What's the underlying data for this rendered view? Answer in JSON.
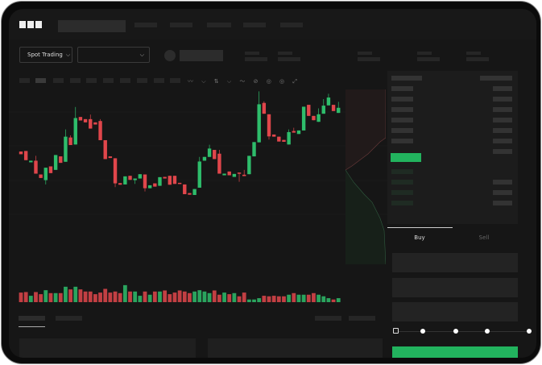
{
  "header": {
    "logo": "OKX"
  },
  "toolbar": {
    "market_select": "Spot Trading",
    "chevron": "chevron-down-icon"
  },
  "trade_panel": {
    "tabs": [
      {
        "label": "Buy",
        "active": true
      },
      {
        "label": "Sell",
        "active": false
      }
    ],
    "slider_level": 0,
    "buy_color": "#22b35e"
  },
  "colors": {
    "up": "#2ebd6b",
    "down": "#e0464b",
    "background": "#161616"
  },
  "chart_data": {
    "type": "candlestick",
    "up_color": "#2ebd6b",
    "down_color": "#e0464b",
    "candles": [
      [
        250,
        240,
        250,
        240
      ],
      [
        252,
        218,
        252,
        218
      ],
      [
        210,
        216,
        216,
        210
      ],
      [
        216,
        168,
        234,
        168
      ],
      [
        165,
        152,
        165,
        152
      ],
      [
        144,
        190,
        190,
        128
      ],
      [
        195,
        170,
        195,
        170
      ],
      [
        182,
        237,
        237,
        182
      ],
      [
        232,
        208,
        232,
        208
      ],
      [
        212,
        305,
        332,
        212
      ],
      [
        302,
        274,
        310,
        274
      ],
      [
        276,
        374,
        415,
        276
      ],
      [
        378,
        365,
        378,
        365
      ],
      [
        370,
        358,
        370,
        358
      ],
      [
        370,
        335,
        387,
        335
      ],
      [
        358,
        350,
        358,
        350
      ],
      [
        363,
        292,
        370,
        292
      ],
      [
        292,
        222,
        292,
        222
      ],
      [
        232,
        226,
        232,
        226
      ],
      [
        225,
        132,
        225,
        118
      ],
      [
        133,
        127,
        133,
        127
      ],
      [
        128,
        158,
        158,
        128
      ],
      [
        160,
        145,
        160,
        145
      ],
      [
        144,
        150,
        150,
        130
      ],
      [
        150,
        166,
        166,
        150
      ],
      [
        165,
        114,
        165,
        102
      ],
      [
        114,
        125,
        125,
        114
      ],
      [
        132,
        120,
        132,
        120
      ],
      [
        123,
        155,
        155,
        123
      ],
      [
        156,
        150,
        156,
        150
      ],
      [
        160,
        127,
        160,
        127
      ],
      [
        160,
        130,
        160,
        130
      ],
      [
        134,
        130,
        134,
        130
      ],
      [
        128,
        92,
        128,
        92
      ],
      [
        96,
        90,
        96,
        90
      ],
      [
        89,
        111,
        111,
        89
      ],
      [
        116,
        213,
        230,
        116
      ],
      [
        216,
        230,
        230,
        216
      ],
      [
        230,
        261,
        275,
        230
      ],
      [
        256,
        222,
        256,
        222
      ],
      [
        242,
        168,
        256,
        168
      ],
      [
        162,
        168,
        168,
        162
      ],
      [
        176,
        162,
        176,
        162
      ],
      [
        156,
        167,
        167,
        156
      ],
      [
        172,
        168,
        172,
        138
      ],
      [
        164,
        159,
        182,
        159
      ],
      [
        166,
        234,
        234,
        166
      ],
      [
        232,
        285,
        285,
        232
      ],
      [
        284,
        425,
        473,
        284
      ],
      [
        430,
        390,
        436,
        390
      ],
      [
        388,
        306,
        388,
        294
      ],
      [
        313,
        305,
        313,
        305
      ],
      [
        305,
        287,
        305,
        287
      ],
      [
        293,
        286,
        293,
        286
      ],
      [
        276,
        322,
        332,
        276
      ],
      [
        326,
        320,
        338,
        320
      ],
      [
        315,
        328,
        328,
        315
      ],
      [
        328,
        416,
        416,
        328
      ],
      [
        423,
        382,
        423,
        382
      ],
      [
        382,
        366,
        382,
        366
      ],
      [
        360,
        388,
        410,
        360
      ],
      [
        390,
        420,
        444,
        390
      ],
      [
        421,
        450,
        464,
        421
      ],
      [
        423,
        400,
        423,
        400
      ],
      [
        393,
        412,
        434,
        393
      ]
    ],
    "candle_fields": [
      "open",
      "close",
      "high",
      "low"
    ],
    "volumes": [
      36,
      38,
      24,
      38,
      30,
      45,
      34,
      34,
      34,
      58,
      48,
      58,
      48,
      40,
      40,
      30,
      36,
      50,
      36,
      40,
      34,
      64,
      40,
      40,
      24,
      40,
      28,
      40,
      40,
      44,
      30,
      36,
      44,
      40,
      34,
      40,
      45,
      40,
      34,
      44,
      28,
      36,
      30,
      34,
      22,
      36,
      10,
      10,
      15,
      24,
      22,
      24,
      22,
      22,
      28,
      34,
      28,
      28,
      28,
      34,
      28,
      22,
      15,
      10,
      15
    ]
  }
}
